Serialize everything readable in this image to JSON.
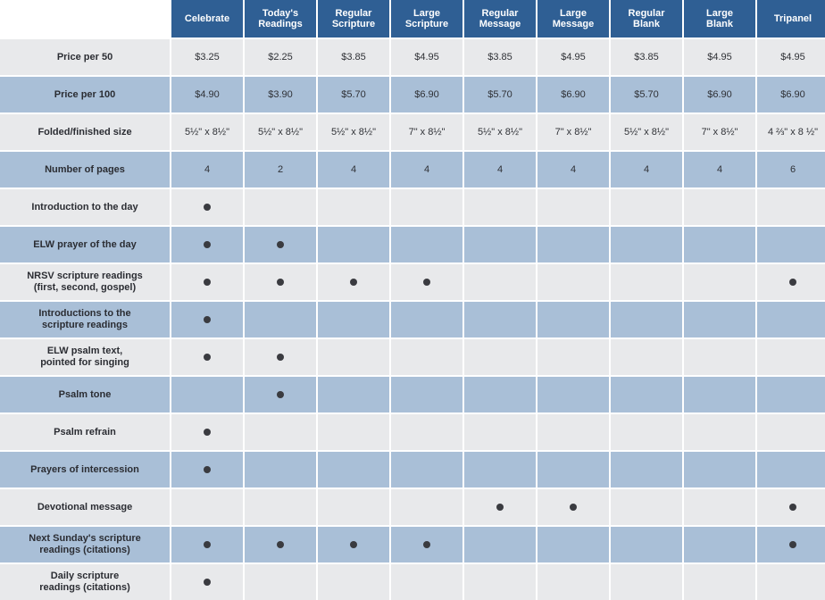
{
  "columns": [
    {
      "line1": "Celebrate",
      "line2": ""
    },
    {
      "line1": "Today's",
      "line2": "Readings"
    },
    {
      "line1": "Regular",
      "line2": "Scripture"
    },
    {
      "line1": "Large",
      "line2": "Scripture"
    },
    {
      "line1": "Regular",
      "line2": "Message"
    },
    {
      "line1": "Large",
      "line2": "Message"
    },
    {
      "line1": "Regular",
      "line2": "Blank"
    },
    {
      "line1": "Large",
      "line2": "Blank"
    },
    {
      "line1": "Tripanel",
      "line2": ""
    }
  ],
  "rows": [
    {
      "label1": "Price per 50",
      "label2": "",
      "cells": [
        "$3.25",
        "$2.25",
        "$3.85",
        "$4.95",
        "$3.85",
        "$4.95",
        "$3.85",
        "$4.95",
        "$4.95"
      ]
    },
    {
      "label1": "Price per 100",
      "label2": "",
      "cells": [
        "$4.90",
        "$3.90",
        "$5.70",
        "$6.90",
        "$5.70",
        "$6.90",
        "$5.70",
        "$6.90",
        "$6.90"
      ]
    },
    {
      "label1": "Folded/finished size",
      "label2": "",
      "cells": [
        "5½\" x 8½\"",
        "5½\" x 8½\"",
        "5½\" x 8½\"",
        "7\" x 8½\"",
        "5½\" x 8½\"",
        "7\" x 8½\"",
        "5½\" x 8½\"",
        "7\" x 8½\"",
        "4 ⅔\" x 8 ½\""
      ]
    },
    {
      "label1": "Number of pages",
      "label2": "",
      "cells": [
        "4",
        "2",
        "4",
        "4",
        "4",
        "4",
        "4",
        "4",
        "6"
      ]
    },
    {
      "label1": "Introduction to the day",
      "label2": "",
      "cells": [
        true,
        false,
        false,
        false,
        false,
        false,
        false,
        false,
        false
      ]
    },
    {
      "label1": "ELW prayer of the day",
      "label2": "",
      "cells": [
        true,
        true,
        false,
        false,
        false,
        false,
        false,
        false,
        false
      ]
    },
    {
      "label1": "NRSV scripture readings",
      "label2": "(first, second, gospel)",
      "cells": [
        true,
        true,
        true,
        true,
        false,
        false,
        false,
        false,
        true
      ]
    },
    {
      "label1": "Introductions to the",
      "label2": "scripture readings",
      "cells": [
        true,
        false,
        false,
        false,
        false,
        false,
        false,
        false,
        false
      ]
    },
    {
      "label1": "ELW psalm text,",
      "label2": "pointed for singing",
      "cells": [
        true,
        true,
        false,
        false,
        false,
        false,
        false,
        false,
        false
      ]
    },
    {
      "label1": "Psalm tone",
      "label2": "",
      "cells": [
        false,
        true,
        false,
        false,
        false,
        false,
        false,
        false,
        false
      ]
    },
    {
      "label1": "Psalm refrain",
      "label2": "",
      "cells": [
        true,
        false,
        false,
        false,
        false,
        false,
        false,
        false,
        false
      ]
    },
    {
      "label1": "Prayers of intercession",
      "label2": "",
      "cells": [
        true,
        false,
        false,
        false,
        false,
        false,
        false,
        false,
        false
      ]
    },
    {
      "label1": "Devotional message",
      "label2": "",
      "cells": [
        false,
        false,
        false,
        false,
        true,
        true,
        false,
        false,
        true
      ]
    },
    {
      "label1": "Next Sunday's scripture",
      "label2": "readings (citations)",
      "cells": [
        true,
        true,
        true,
        true,
        false,
        false,
        false,
        false,
        true
      ]
    },
    {
      "label1": "Daily scripture",
      "label2": "readings (citations)",
      "cells": [
        true,
        false,
        false,
        false,
        false,
        false,
        false,
        false,
        false
      ]
    }
  ],
  "colors": {
    "header": "#2f5f94",
    "row_light": "#e8e9eb",
    "row_blue": "#a9bfd7",
    "dot": "#3a3b40"
  },
  "icons": {
    "included_marker": "bullet-dot-icon"
  }
}
